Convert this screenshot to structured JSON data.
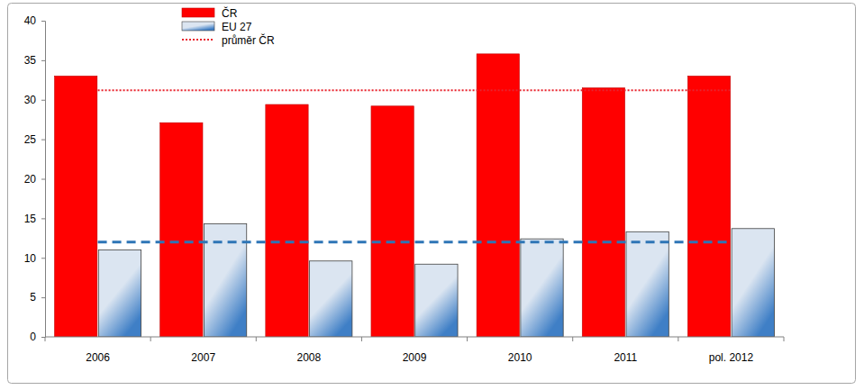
{
  "chart_data": {
    "type": "bar",
    "categories": [
      "2006",
      "2007",
      "2008",
      "2009",
      "2010",
      "2011",
      "pol. 2012"
    ],
    "series": [
      {
        "name": "ČR",
        "type": "bar",
        "color": "#ff0000",
        "values": [
          33.0,
          27.1,
          29.4,
          29.2,
          35.8,
          31.5,
          33.0
        ]
      },
      {
        "name": "EU 27",
        "type": "bar",
        "color": "#dbe5f1",
        "values": [
          11.0,
          14.3,
          9.6,
          9.2,
          12.4,
          13.3,
          13.7
        ]
      },
      {
        "name": "průměr ČR",
        "type": "line",
        "line_style": "dotted",
        "color": "#e8242e",
        "values": [
          31.2,
          31.2,
          31.2,
          31.2,
          31.2,
          31.2,
          31.2
        ]
      },
      {
        "type": "line",
        "line_style": "dashed",
        "color": "#2e75b6",
        "values": [
          12.0,
          12.0,
          12.0,
          12.0,
          12.0,
          12.0,
          12.0
        ]
      }
    ],
    "ylim": [
      0,
      40
    ],
    "yticks": [
      0,
      5,
      10,
      15,
      20,
      25,
      30,
      35,
      40
    ],
    "grid": false,
    "legend": "upper left"
  }
}
